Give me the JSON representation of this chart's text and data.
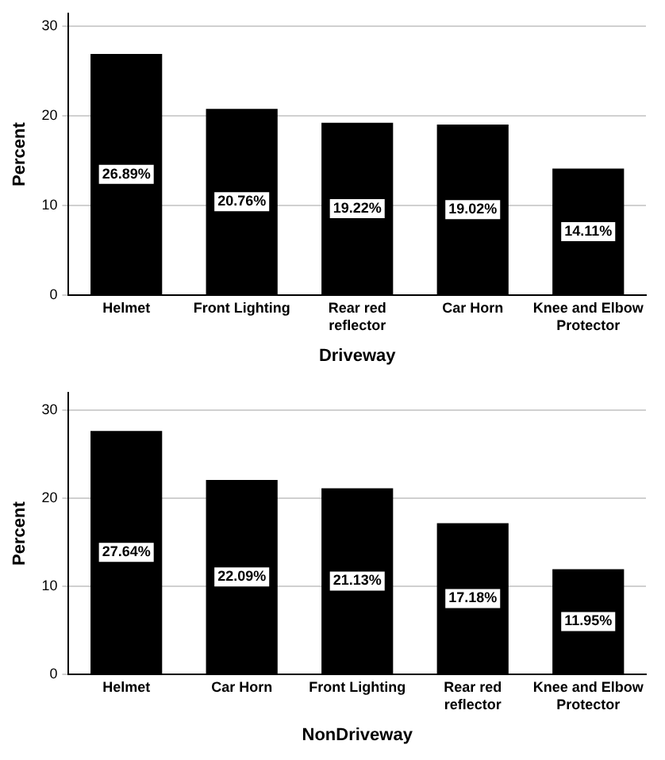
{
  "chart_data": [
    {
      "type": "bar",
      "xlabel": "Driveway",
      "ylabel": "Percent",
      "categories": [
        "Helmet",
        "Front Lighting",
        "Rear red reflector",
        "Car Horn",
        "Knee and Elbow Protector"
      ],
      "values": [
        26.89,
        20.76,
        19.22,
        19.02,
        14.11
      ],
      "value_labels": [
        "26.89%",
        "20.76%",
        "19.22%",
        "19.02%",
        "14.11%"
      ],
      "color": "#000000",
      "ylim": [
        0,
        31.4
      ],
      "yticks": [
        0,
        10,
        20,
        30
      ],
      "grid": "y",
      "legend": false
    },
    {
      "type": "bar",
      "xlabel": "NonDriveway",
      "ylabel": "Percent",
      "categories": [
        "Helmet",
        "Car Horn",
        "Front Lighting",
        "Rear red reflector",
        "Knee and Elbow Protector"
      ],
      "values": [
        27.64,
        22.09,
        21.13,
        17.18,
        11.95
      ],
      "value_labels": [
        "27.64%",
        "22.09%",
        "21.13%",
        "17.18%",
        "11.95%"
      ],
      "color": "#000000",
      "ylim": [
        0,
        32
      ],
      "yticks": [
        0,
        10,
        20,
        30
      ],
      "grid": "y",
      "legend": false
    }
  ]
}
